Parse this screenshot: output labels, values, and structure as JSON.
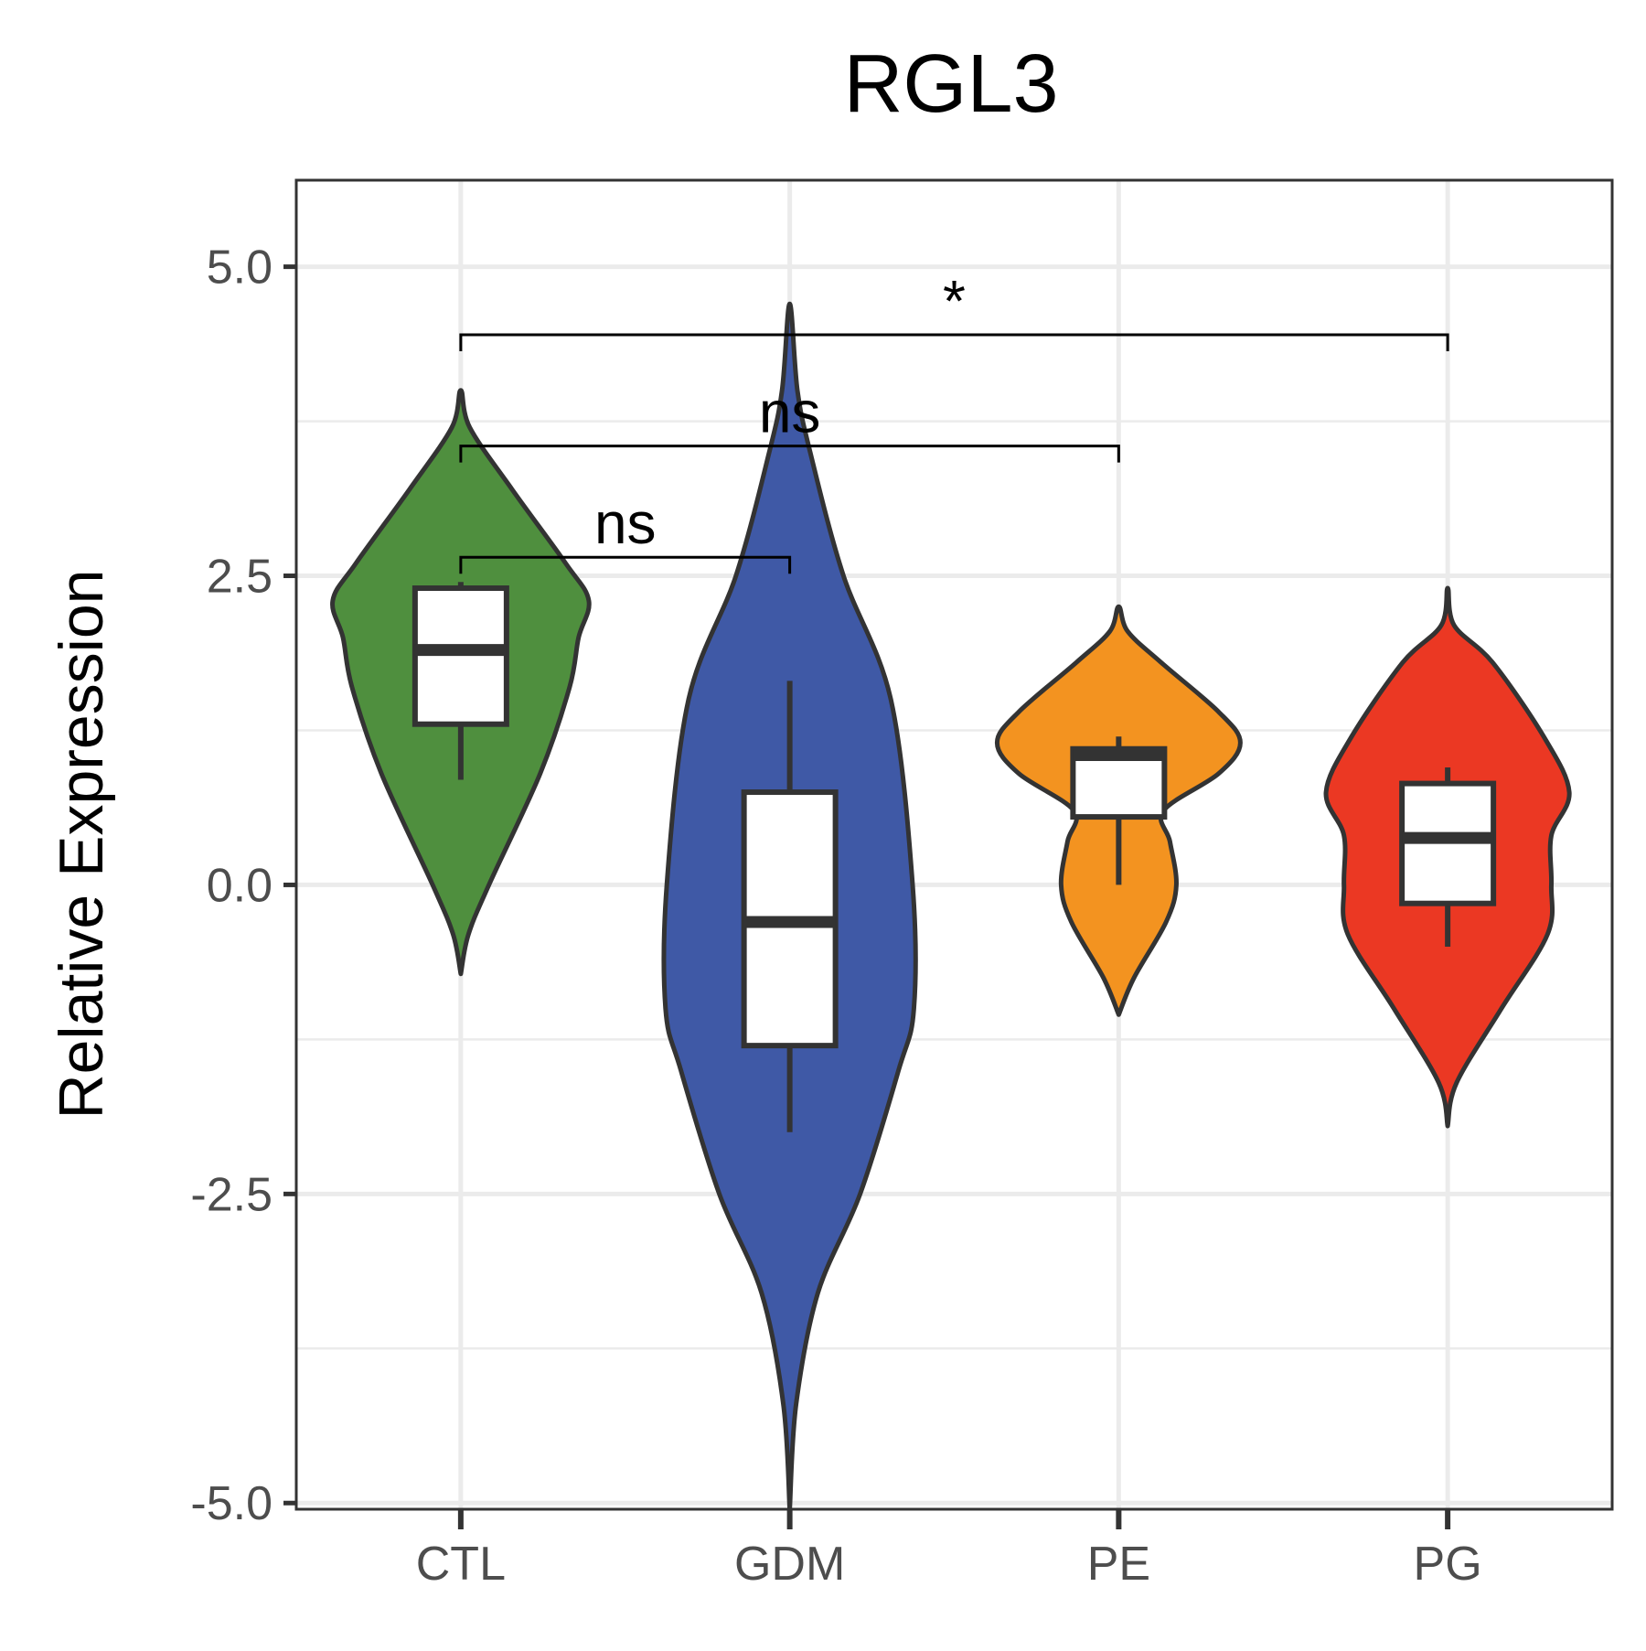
{
  "chart_data": {
    "type": "violin",
    "title": "RGL3",
    "xlabel": "",
    "ylabel": "Relative Expression",
    "categories": [
      "CTL",
      "GDM",
      "PE",
      "PG"
    ],
    "ylim": [
      -5.05,
      5.7
    ],
    "yticks": [
      5.0,
      2.5,
      0.0,
      -2.5,
      -5.0
    ],
    "ytick_labels": [
      "5.0",
      "2.5",
      "0.0",
      "-2.5",
      "-5.0"
    ],
    "grid": true,
    "colors": {
      "CTL": "#4f8f3e",
      "GDM": "#3f59a6",
      "PE": "#f39320",
      "PG": "#eb3823",
      "outline": "#333333",
      "grid": "#ebebeb",
      "panel_border": "#333333"
    },
    "series": [
      {
        "name": "CTL",
        "violin": [
          [
            -0.72,
            0.0
          ],
          [
            -0.4,
            0.06
          ],
          [
            0.0,
            0.22
          ],
          [
            0.9,
            0.62
          ],
          [
            1.6,
            0.85
          ],
          [
            2.0,
            0.92
          ],
          [
            2.3,
            1.0
          ],
          [
            2.6,
            0.82
          ],
          [
            3.2,
            0.4
          ],
          [
            3.7,
            0.07
          ],
          [
            4.0,
            0.0
          ]
        ],
        "box": {
          "q1": 1.3,
          "median": 1.9,
          "q3": 2.4,
          "whisker_low": 0.85,
          "whisker_high": 2.45
        }
      },
      {
        "name": "GDM",
        "violin": [
          [
            -5.05,
            0.0
          ],
          [
            -4.2,
            0.05
          ],
          [
            -3.3,
            0.22
          ],
          [
            -2.5,
            0.55
          ],
          [
            -1.5,
            0.85
          ],
          [
            -1.0,
            0.97
          ],
          [
            0.0,
            0.96
          ],
          [
            1.5,
            0.79
          ],
          [
            2.5,
            0.42
          ],
          [
            3.5,
            0.16
          ],
          [
            4.0,
            0.06
          ],
          [
            4.7,
            0.0
          ]
        ],
        "box": {
          "q1": -1.3,
          "median": -0.3,
          "q3": 0.75,
          "whisker_low": -2.0,
          "whisker_high": 1.65
        }
      },
      {
        "name": "PE",
        "violin": [
          [
            -1.05,
            0.0
          ],
          [
            -0.75,
            0.12
          ],
          [
            -0.3,
            0.37
          ],
          [
            0.0,
            0.45
          ],
          [
            0.35,
            0.4
          ],
          [
            0.6,
            0.35
          ],
          [
            0.9,
            0.78
          ],
          [
            1.15,
            0.95
          ],
          [
            1.4,
            0.78
          ],
          [
            1.8,
            0.33
          ],
          [
            2.05,
            0.07
          ],
          [
            2.25,
            0.0
          ]
        ],
        "box": {
          "q1": 0.55,
          "median": 1.05,
          "q3": 1.1,
          "whisker_low": 0.0,
          "whisker_high": 1.2
        }
      },
      {
        "name": "PG",
        "violin": [
          [
            -1.95,
            0.0
          ],
          [
            -1.6,
            0.07
          ],
          [
            -1.0,
            0.42
          ],
          [
            -0.4,
            0.78
          ],
          [
            0.0,
            0.81
          ],
          [
            0.4,
            0.81
          ],
          [
            0.75,
            0.95
          ],
          [
            1.2,
            0.75
          ],
          [
            1.8,
            0.35
          ],
          [
            2.1,
            0.05
          ],
          [
            2.4,
            0.0
          ]
        ],
        "box": {
          "q1": -0.15,
          "median": 0.38,
          "q3": 0.82,
          "whisker_low": -0.5,
          "whisker_high": 0.95
        }
      }
    ],
    "comparisons": [
      {
        "group1": "CTL",
        "group2": "GDM",
        "y": 2.65,
        "label": "ns"
      },
      {
        "group1": "CTL",
        "group2": "PE",
        "y": 3.55,
        "label": "ns"
      },
      {
        "group1": "CTL",
        "group2": "PG",
        "y": 4.45,
        "label": "*"
      }
    ]
  }
}
